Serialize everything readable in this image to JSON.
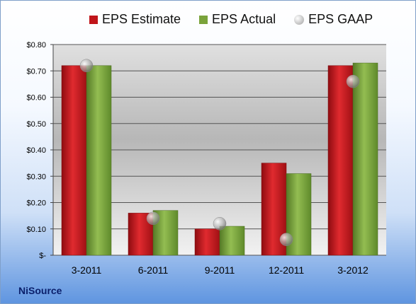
{
  "chart_data": {
    "type": "bar",
    "categories": [
      "3-2011",
      "6-2011",
      "9-2011",
      "12-2011",
      "3-2012"
    ],
    "series": [
      {
        "name": "EPS Estimate",
        "values": [
          0.72,
          0.16,
          0.1,
          0.35,
          0.72
        ],
        "color": "#c0151a",
        "kind": "bar"
      },
      {
        "name": "EPS Actual",
        "values": [
          0.72,
          0.17,
          0.11,
          0.31,
          0.73
        ],
        "color": "#7aa33b",
        "kind": "bar"
      },
      {
        "name": "EPS GAAP",
        "values": [
          0.72,
          0.14,
          0.12,
          0.06,
          0.66
        ],
        "color": "#b0b0b0",
        "kind": "marker"
      }
    ],
    "ylim": [
      0,
      0.8
    ],
    "yticks": [
      0,
      0.1,
      0.2,
      0.3,
      0.4,
      0.5,
      0.6,
      0.7,
      0.8
    ],
    "ytick_labels": [
      "$-",
      "$0.10",
      "$0.20",
      "$0.30",
      "$0.40",
      "$0.50",
      "$0.60",
      "$0.70",
      "$0.80"
    ],
    "grid": true,
    "legend_position": "top"
  },
  "legend": {
    "estimate": "EPS Estimate",
    "actual": "EPS Actual",
    "gaap": "EPS GAAP"
  },
  "company": "NiSource"
}
